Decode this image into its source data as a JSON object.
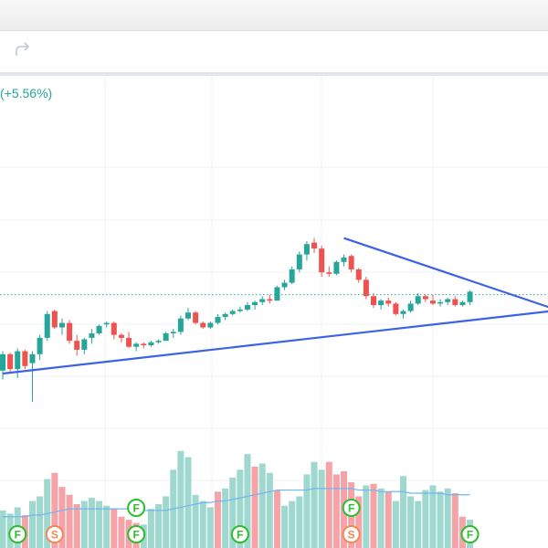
{
  "header": {
    "redo_icon": "redo-icon"
  },
  "symbol_info": {
    "change_text": "(+5.56%)",
    "change_color": "#26a69a"
  },
  "colors": {
    "up": "#26a69a",
    "down": "#ef5350",
    "vol_up": "#9fd8cf",
    "vol_down": "#f5a3a8",
    "trend": "#3d62e8",
    "ma": "#6fb6f0",
    "marker_f": "#2ebd2e",
    "marker_s": "#f28a56"
  },
  "chart_data": {
    "type": "candlestick",
    "candles": [
      [
        170.9,
        172.2,
        170.3,
        172.0
      ],
      [
        172.0,
        172.1,
        170.8,
        171.0
      ],
      [
        171.0,
        172.4,
        170.4,
        172.2
      ],
      [
        172.2,
        172.3,
        171.0,
        171.2
      ],
      [
        171.4,
        172.2,
        168.8,
        172.0
      ],
      [
        172.0,
        173.3,
        171.6,
        173.1
      ],
      [
        173.1,
        174.9,
        172.9,
        174.7
      ],
      [
        174.9,
        175.0,
        173.7,
        173.8
      ],
      [
        173.8,
        174.4,
        173.3,
        174.1
      ],
      [
        174.1,
        174.3,
        172.7,
        172.9
      ],
      [
        172.9,
        173.3,
        171.9,
        172.3
      ],
      [
        172.3,
        173.1,
        172.0,
        173.0
      ],
      [
        173.1,
        173.7,
        172.7,
        173.4
      ],
      [
        173.4,
        174.0,
        173.3,
        173.9
      ],
      [
        174.0,
        174.2,
        173.8,
        174.1
      ],
      [
        174.1,
        174.2,
        173.0,
        173.3
      ],
      [
        173.3,
        173.4,
        172.8,
        173.1
      ],
      [
        173.1,
        173.5,
        172.4,
        172.5
      ],
      [
        172.5,
        172.8,
        172.2,
        172.7
      ],
      [
        172.7,
        172.8,
        172.4,
        172.6
      ],
      [
        172.6,
        172.9,
        172.5,
        172.8
      ],
      [
        172.8,
        173.0,
        172.7,
        172.9
      ],
      [
        172.9,
        173.5,
        172.9,
        173.4
      ],
      [
        173.4,
        173.7,
        173.1,
        173.5
      ],
      [
        173.5,
        174.6,
        173.3,
        174.4
      ],
      [
        174.4,
        175.1,
        174.3,
        174.8
      ],
      [
        174.8,
        174.9,
        174.0,
        174.1
      ],
      [
        174.1,
        174.2,
        173.7,
        173.8
      ],
      [
        173.8,
        174.2,
        173.7,
        174.1
      ],
      [
        174.1,
        174.7,
        174.0,
        174.5
      ],
      [
        174.5,
        174.8,
        174.3,
        174.7
      ],
      [
        174.7,
        175.0,
        174.6,
        174.9
      ],
      [
        174.9,
        175.2,
        174.8,
        175.0
      ],
      [
        175.0,
        175.5,
        174.9,
        175.3
      ],
      [
        175.3,
        175.6,
        175.0,
        175.5
      ],
      [
        175.5,
        175.9,
        175.3,
        175.7
      ],
      [
        175.7,
        176.0,
        175.4,
        175.6
      ],
      [
        175.6,
        176.6,
        175.6,
        176.5
      ],
      [
        176.5,
        177.0,
        176.3,
        176.8
      ],
      [
        176.8,
        177.9,
        176.7,
        177.7
      ],
      [
        177.7,
        178.9,
        177.5,
        178.7
      ],
      [
        178.7,
        179.6,
        178.3,
        179.4
      ],
      [
        179.5,
        179.8,
        178.8,
        179.1
      ],
      [
        179.1,
        179.3,
        177.2,
        177.5
      ],
      [
        177.5,
        177.9,
        177.2,
        177.4
      ],
      [
        177.4,
        178.3,
        177.3,
        178.2
      ],
      [
        178.2,
        178.7,
        177.9,
        178.5
      ],
      [
        178.6,
        178.7,
        177.5,
        177.7
      ],
      [
        177.7,
        177.8,
        176.8,
        177.0
      ],
      [
        177.0,
        177.2,
        175.7,
        175.9
      ],
      [
        175.9,
        176.1,
        175.1,
        175.3
      ],
      [
        175.3,
        175.7,
        175.0,
        175.6
      ],
      [
        175.6,
        175.8,
        175.2,
        175.4
      ],
      [
        175.4,
        175.5,
        174.6,
        174.7
      ],
      [
        174.7,
        175.0,
        174.4,
        174.9
      ],
      [
        174.9,
        175.6,
        174.8,
        175.4
      ],
      [
        175.4,
        176.1,
        175.3,
        175.9
      ],
      [
        175.9,
        176.0,
        175.5,
        175.7
      ],
      [
        175.6,
        176.0,
        175.3,
        175.4
      ],
      [
        175.4,
        175.7,
        175.2,
        175.5
      ],
      [
        175.5,
        175.8,
        175.3,
        175.7
      ],
      [
        175.7,
        175.9,
        175.2,
        175.3
      ],
      [
        175.3,
        175.6,
        175.2,
        175.5
      ],
      [
        175.5,
        176.3,
        175.3,
        176.2
      ]
    ],
    "volumes": [
      [
        24,
        1
      ],
      [
        22,
        1
      ],
      [
        26,
        1
      ],
      [
        21,
        0
      ],
      [
        30,
        1
      ],
      [
        33,
        1
      ],
      [
        44,
        1
      ],
      [
        48,
        0
      ],
      [
        39,
        0
      ],
      [
        34,
        0
      ],
      [
        28,
        0
      ],
      [
        30,
        1
      ],
      [
        32,
        1
      ],
      [
        30,
        1
      ],
      [
        27,
        1
      ],
      [
        25,
        0
      ],
      [
        20,
        0
      ],
      [
        18,
        0
      ],
      [
        16,
        0
      ],
      [
        15,
        1
      ],
      [
        25,
        1
      ],
      [
        28,
        1
      ],
      [
        33,
        1
      ],
      [
        50,
        1
      ],
      [
        62,
        1
      ],
      [
        58,
        1
      ],
      [
        34,
        1
      ],
      [
        30,
        1
      ],
      [
        26,
        1
      ],
      [
        36,
        0
      ],
      [
        38,
        1
      ],
      [
        45,
        1
      ],
      [
        50,
        1
      ],
      [
        60,
        1
      ],
      [
        52,
        0
      ],
      [
        54,
        1
      ],
      [
        48,
        1
      ],
      [
        37,
        0
      ],
      [
        27,
        1
      ],
      [
        30,
        1
      ],
      [
        33,
        1
      ],
      [
        47,
        1
      ],
      [
        55,
        1
      ],
      [
        50,
        1
      ],
      [
        55,
        0
      ],
      [
        47,
        0
      ],
      [
        49,
        0
      ],
      [
        42,
        0
      ],
      [
        33,
        0
      ],
      [
        40,
        1
      ],
      [
        41,
        0
      ],
      [
        38,
        1
      ],
      [
        36,
        0
      ],
      [
        30,
        1
      ],
      [
        46,
        1
      ],
      [
        33,
        1
      ],
      [
        30,
        1
      ],
      [
        37,
        1
      ],
      [
        40,
        1
      ],
      [
        36,
        1
      ],
      [
        38,
        1
      ],
      [
        35,
        0
      ],
      [
        20,
        0
      ],
      [
        18,
        1
      ]
    ],
    "moving_average": [
      20,
      20,
      20,
      20,
      21,
      21,
      22,
      23,
      24,
      25,
      25,
      25,
      25,
      25,
      25,
      25,
      25,
      25,
      25,
      24,
      24,
      24,
      24,
      25,
      26,
      27,
      28,
      29,
      29,
      30,
      30,
      31,
      32,
      33,
      34,
      35,
      36,
      37,
      37,
      37,
      37,
      37,
      38,
      38,
      38,
      38,
      38,
      38,
      37,
      37,
      37,
      36,
      36,
      36,
      36,
      35,
      35,
      35,
      35,
      35,
      34,
      34,
      34,
      34
    ],
    "markers_row1": [
      {
        "index": 18,
        "label": "F"
      },
      {
        "index": 47,
        "label": "F"
      }
    ],
    "markers_row2": [
      {
        "index": 2,
        "label": "F"
      },
      {
        "index": 7,
        "label": "S"
      },
      {
        "index": 18,
        "label": "F"
      },
      {
        "index": 32,
        "label": "F"
      },
      {
        "index": 47,
        "label": "S"
      },
      {
        "index": 63,
        "label": "F"
      }
    ],
    "trendlines": [
      {
        "name": "upper",
        "from": [
          46,
          179.8
        ],
        "to": [
          74,
          175.1
        ]
      },
      {
        "name": "lower",
        "from": [
          0,
          170.7
        ],
        "to": [
          74,
          174.9
        ]
      }
    ],
    "dotted_line_price": 176.0,
    "ylim": [
      168.0,
      181.5
    ],
    "vol_max": 70
  }
}
